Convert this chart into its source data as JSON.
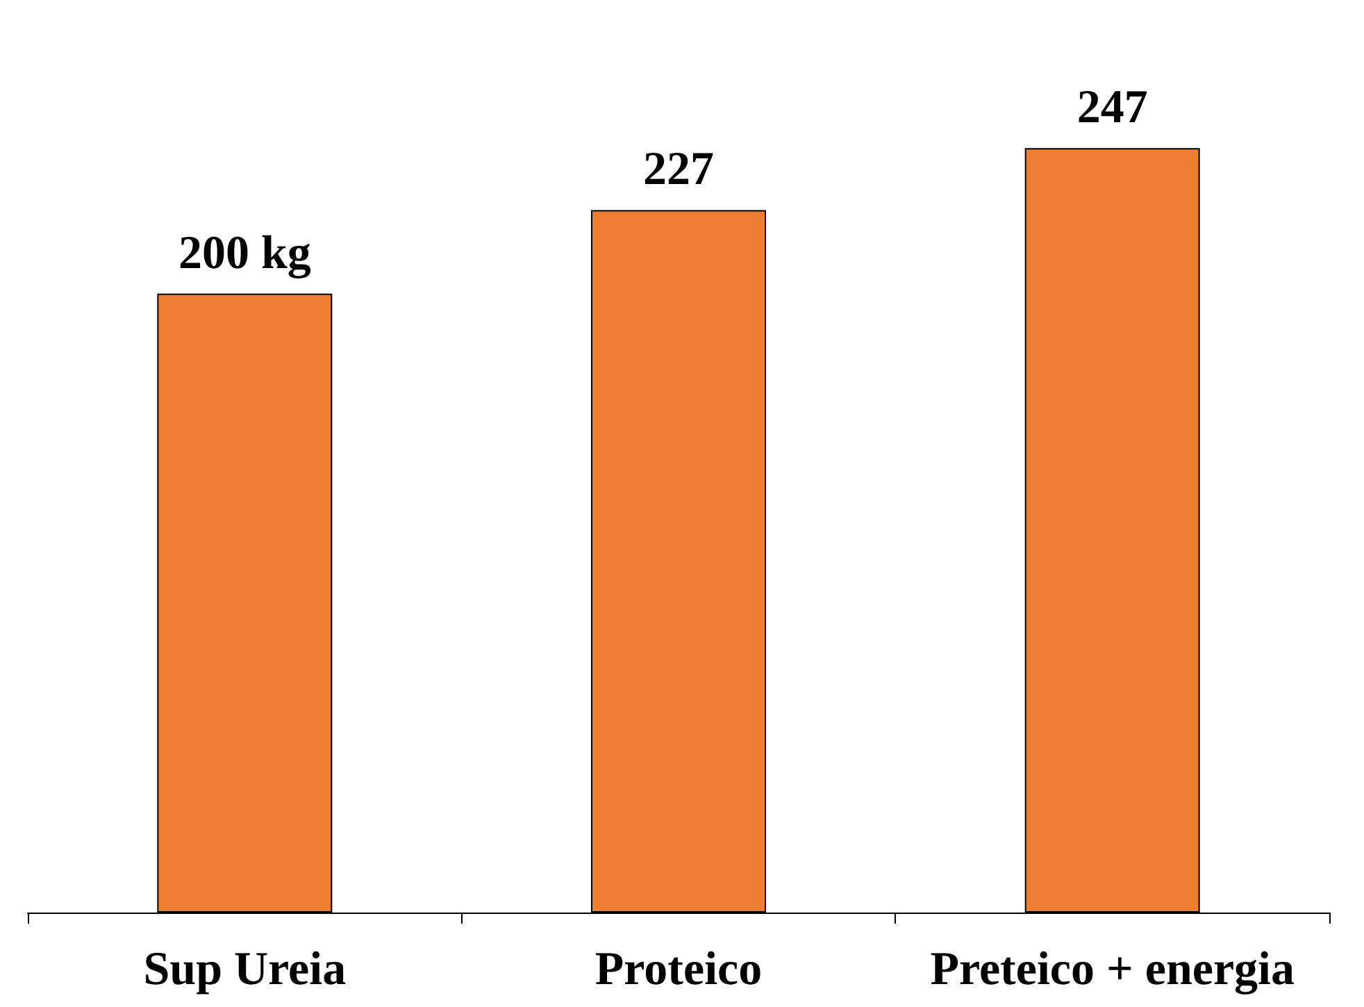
{
  "chart_data": {
    "type": "bar",
    "categories": [
      "Sup Ureia",
      "Proteico",
      "Preteico + energia"
    ],
    "values": [
      200,
      227,
      247
    ],
    "color": "#ed7d31",
    "value_labels": [
      "200 kg",
      "227",
      "247"
    ],
    "tick_labels": "x",
    "grid": false
  }
}
